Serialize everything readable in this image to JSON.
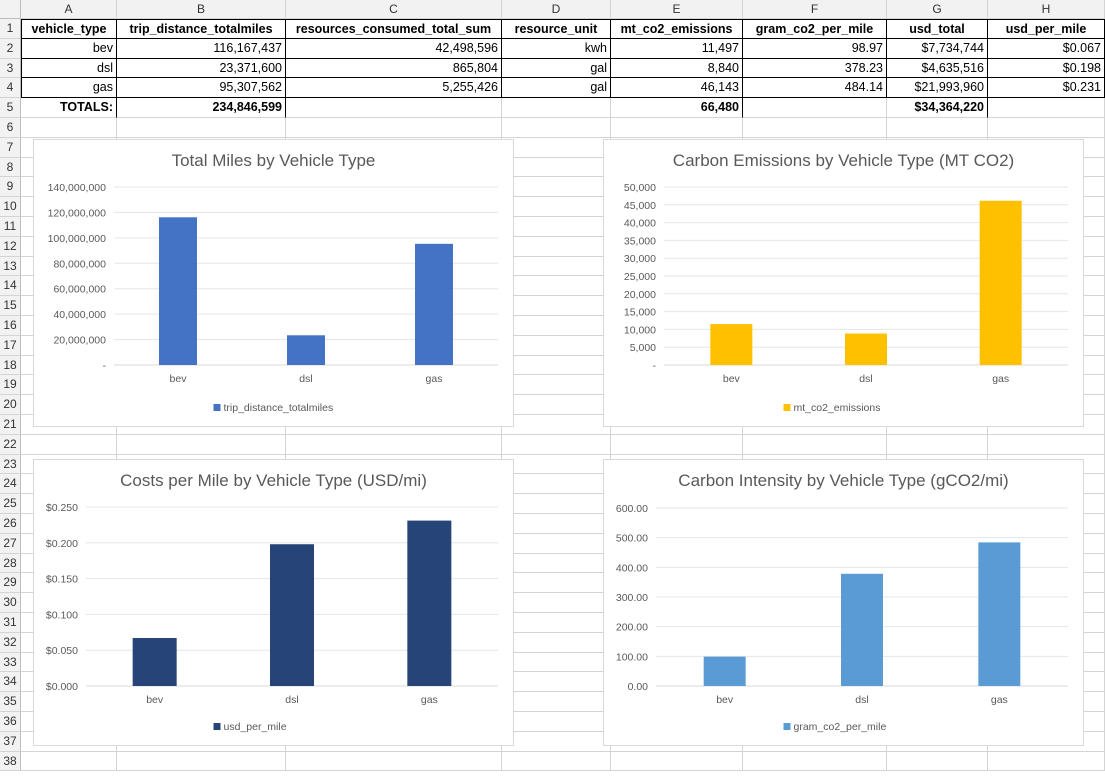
{
  "sheet": {
    "columns": [
      "A",
      "B",
      "C",
      "D",
      "E",
      "F",
      "G",
      "H"
    ],
    "rows": [
      "1",
      "2",
      "3",
      "4",
      "5",
      "6",
      "7",
      "8",
      "9",
      "10",
      "11",
      "12",
      "13",
      "14",
      "15",
      "16",
      "17",
      "18",
      "19",
      "20",
      "21",
      "22",
      "23",
      "24",
      "25",
      "26",
      "27",
      "28",
      "29",
      "30",
      "31",
      "32",
      "33",
      "34",
      "35",
      "36",
      "37",
      "38"
    ],
    "table": {
      "headers": [
        "vehicle_type",
        "trip_distance_totalmiles",
        "resources_consumed_total_sum",
        "resource_unit",
        "mt_co2_emissions",
        "gram_co2_per_mile",
        "usd_total",
        "usd_per_mile"
      ],
      "data": [
        [
          "bev",
          "116,167,437",
          "42,498,596",
          "kwh",
          "11,497",
          "98.97",
          "$7,734,744",
          "$0.067"
        ],
        [
          "dsl",
          "23,371,600",
          "865,804",
          "gal",
          "8,840",
          "378.23",
          "$4,635,516",
          "$0.198"
        ],
        [
          "gas",
          "95,307,562",
          "5,255,426",
          "gal",
          "46,143",
          "484.14",
          "$21,993,960",
          "$0.231"
        ]
      ],
      "totals": [
        "TOTALS:",
        "234,846,599",
        "",
        "",
        "66,480",
        "",
        "$34,364,220",
        ""
      ]
    }
  },
  "charts": {
    "miles": {
      "title": "Total Miles by Vehicle Type",
      "legend": "trip_distance_totalmiles",
      "color": "#4472c4",
      "ticks": [
        "140,000,000",
        "120,000,000",
        "100,000,000",
        "80,000,000",
        "60,000,000",
        "40,000,000",
        "20,000,000",
        "-"
      ]
    },
    "carbon": {
      "title": "Carbon Emissions by Vehicle Type (MT CO2)",
      "legend": "mt_co2_emissions",
      "color": "#ffc000",
      "ticks": [
        "50,000",
        "45,000",
        "40,000",
        "35,000",
        "30,000",
        "25,000",
        "20,000",
        "15,000",
        "10,000",
        "5,000",
        "-"
      ]
    },
    "cost": {
      "title": "Costs per Mile by Vehicle Type (USD/mi)",
      "legend": "usd_per_mile",
      "color": "#264478",
      "ticks": [
        "$0.250",
        "$0.200",
        "$0.150",
        "$0.100",
        "$0.050",
        "$0.000"
      ]
    },
    "intensity": {
      "title": "Carbon Intensity by Vehicle Type (gCO2/mi)",
      "legend": "gram_co2_per_mile",
      "color": "#5b9bd5",
      "ticks": [
        "600.00",
        "500.00",
        "400.00",
        "300.00",
        "200.00",
        "100.00",
        "0.00"
      ]
    }
  },
  "chart_data": [
    {
      "type": "bar",
      "title": "Total Miles by Vehicle Type",
      "categories": [
        "bev",
        "dsl",
        "gas"
      ],
      "series": [
        {
          "name": "trip_distance_totalmiles",
          "values": [
            116167437,
            23371600,
            95307562
          ]
        }
      ],
      "ylim": [
        0,
        140000000
      ],
      "grid": true,
      "legend": "bottom"
    },
    {
      "type": "bar",
      "title": "Carbon Emissions by Vehicle Type (MT CO2)",
      "categories": [
        "bev",
        "dsl",
        "gas"
      ],
      "series": [
        {
          "name": "mt_co2_emissions",
          "values": [
            11497,
            8840,
            46143
          ]
        }
      ],
      "ylim": [
        0,
        50000
      ],
      "grid": true,
      "legend": "bottom"
    },
    {
      "type": "bar",
      "title": "Costs per Mile by Vehicle Type (USD/mi)",
      "categories": [
        "bev",
        "dsl",
        "gas"
      ],
      "series": [
        {
          "name": "usd_per_mile",
          "values": [
            0.067,
            0.198,
            0.231
          ]
        }
      ],
      "ylim": [
        0,
        0.25
      ],
      "grid": true,
      "legend": "bottom"
    },
    {
      "type": "bar",
      "title": "Carbon Intensity by Vehicle Type (gCO2/mi)",
      "categories": [
        "bev",
        "dsl",
        "gas"
      ],
      "series": [
        {
          "name": "gram_co2_per_mile",
          "values": [
            98.97,
            378.23,
            484.14
          ]
        }
      ],
      "ylim": [
        0,
        600
      ],
      "grid": true,
      "legend": "bottom"
    }
  ]
}
